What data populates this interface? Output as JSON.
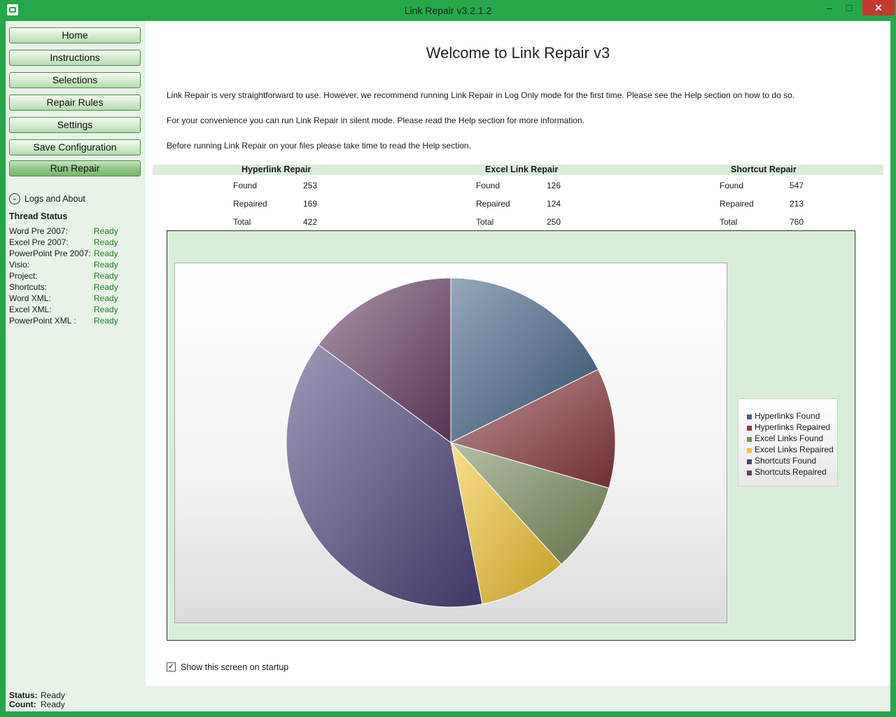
{
  "window": {
    "title": "Link Repair v3.2.1.2",
    "min_icon": "minimize-icon",
    "max_icon": "maximize-icon",
    "close_icon": "close-icon"
  },
  "nav": {
    "buttons": [
      "Home",
      "Instructions",
      "Selections",
      "Repair Rules",
      "Settings",
      "Save Configuration",
      "Run Repair"
    ],
    "logs_about": "Logs and About"
  },
  "thread_status": {
    "title": "Thread Status",
    "rows": [
      {
        "name": "Word Pre 2007:",
        "status": "Ready"
      },
      {
        "name": "Excel Pre 2007:",
        "status": "Ready"
      },
      {
        "name": "PowerPoint Pre 2007:",
        "status": "Ready"
      },
      {
        "name": "Visio:",
        "status": "Ready"
      },
      {
        "name": "Project:",
        "status": "Ready"
      },
      {
        "name": "Shortcuts:",
        "status": "Ready"
      },
      {
        "name": "Word XML:",
        "status": "Ready"
      },
      {
        "name": "Excel XML:",
        "status": "Ready"
      },
      {
        "name": "PowerPoint XML :",
        "status": "Ready"
      }
    ]
  },
  "main": {
    "welcome": "Welcome to Link Repair v3",
    "paragraphs": [
      "Link Repair is very straightforward to use.  However, we recommend running Link Repair in Log Only mode for the first time.  Please see the Help section on how to do so.",
      "For your convenience you can run Link Repair in silent mode. Please read the Help section for more information.",
      "Before running Link Repair on your files please take time to read the Help section."
    ],
    "stats": [
      {
        "title": "Hyperlink Repair",
        "rows": [
          {
            "label": "Found",
            "value": "253"
          },
          {
            "label": "Repaired",
            "value": "169"
          },
          {
            "label": "Total",
            "value": "422"
          }
        ]
      },
      {
        "title": "Excel Link Repair",
        "rows": [
          {
            "label": "Found",
            "value": "126"
          },
          {
            "label": "Repaired",
            "value": "124"
          },
          {
            "label": "Total",
            "value": "250"
          }
        ]
      },
      {
        "title": "Shortcut Repair",
        "rows": [
          {
            "label": "Found",
            "value": "547"
          },
          {
            "label": "Repaired",
            "value": "213"
          },
          {
            "label": "Total",
            "value": "760"
          }
        ]
      }
    ],
    "show_on_startup": {
      "label": "Show this screen on startup",
      "checked": true
    }
  },
  "status_bar": {
    "status_label": "Status:",
    "status_value": "Ready",
    "count_label": "Count:",
    "count_value": "Ready"
  },
  "colors": {
    "accent": "#24a84a",
    "panel": "#e6f3e6",
    "status_green": "#2a7a2a"
  },
  "chart_data": {
    "type": "pie",
    "categories": [
      "Hyperlinks Found",
      "Hyperlinks Repaired",
      "Excel Links Found",
      "Excel Links Repaired",
      "Shortcuts Found",
      "Shortcuts Repaired"
    ],
    "values": [
      253,
      169,
      126,
      124,
      547,
      213
    ],
    "colors": [
      "#3f6187",
      "#8a3a3c",
      "#7b8f5c",
      "#f6c62e",
      "#4e437e",
      "#6a3f66"
    ],
    "legend_position": "right"
  }
}
